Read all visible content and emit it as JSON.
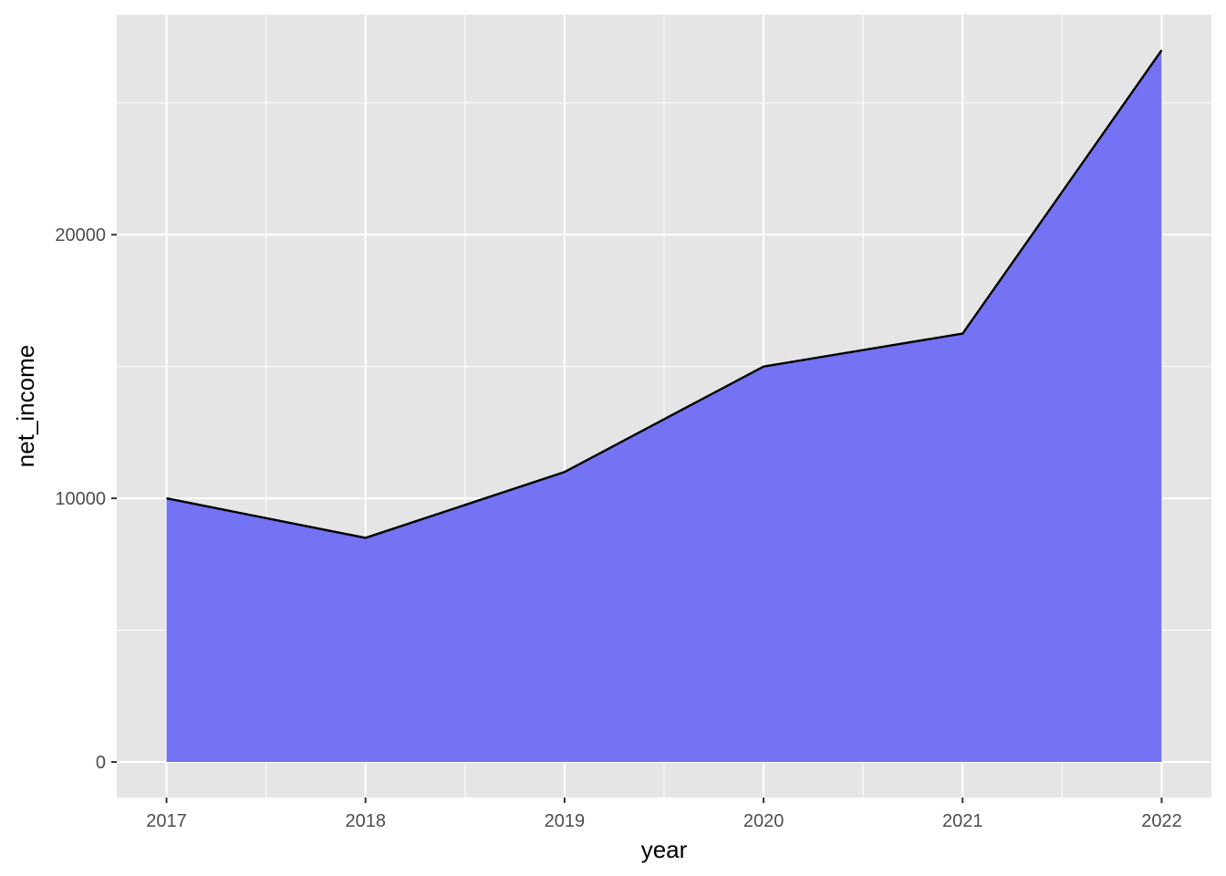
{
  "chart_data": {
    "type": "area",
    "title": "",
    "xlabel": "year",
    "ylabel": "net_income",
    "x": [
      2017,
      2018,
      2019,
      2020,
      2021,
      2022
    ],
    "series": [
      {
        "values": [
          10000,
          8500,
          11000,
          15000,
          16250,
          27000
        ]
      }
    ],
    "xlim": [
      2016.75,
      2022.25
    ],
    "ylim": [
      -1350,
      28350
    ],
    "x_ticks": [
      2017,
      2018,
      2019,
      2020,
      2021,
      2022
    ],
    "x_tick_labels": [
      "2017",
      "2018",
      "2019",
      "2020",
      "2021",
      "2022"
    ],
    "y_ticks": [
      0,
      10000,
      20000
    ],
    "y_tick_labels": [
      "0",
      "10000",
      "20000"
    ],
    "grid": true,
    "legend": "none",
    "colors": {
      "fill": "#7373F3",
      "line": "#000000",
      "panel": "#E5E5E5",
      "grid": "#FFFFFF"
    }
  }
}
